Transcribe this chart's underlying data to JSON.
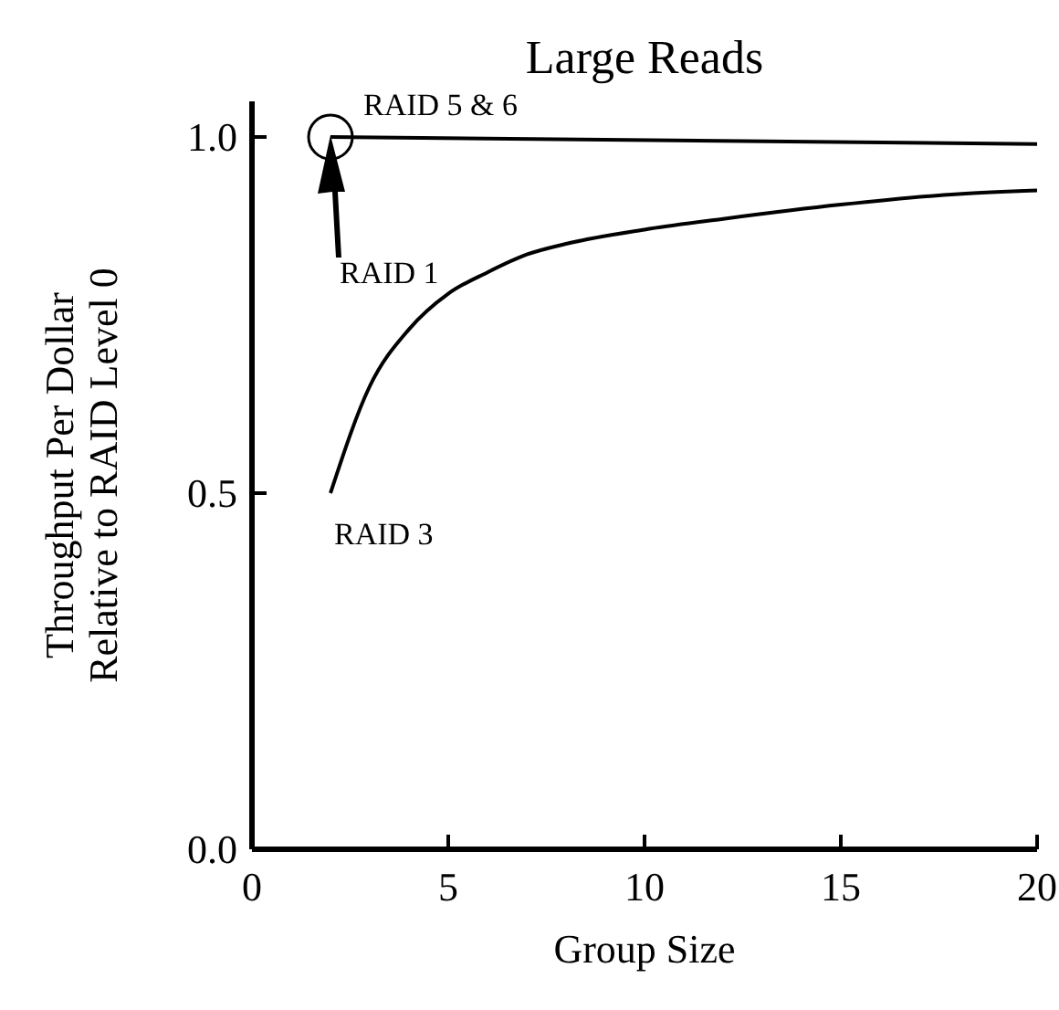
{
  "chart_data": {
    "type": "line",
    "title": "Large Reads",
    "xlabel": "Group Size",
    "ylabel": "Throughput Per Dollar\nRelative to RAID Level 0",
    "xlim": [
      0,
      20
    ],
    "ylim": [
      0,
      1.05
    ],
    "xticks": [
      0,
      5,
      10,
      15,
      20
    ],
    "yticks": [
      {
        "value": 0,
        "label": "0.0"
      },
      {
        "value": 0.5,
        "label": "0.5"
      },
      {
        "value": 1,
        "label": "1.0"
      }
    ],
    "grid": false,
    "legend": false,
    "line_style": "solid",
    "annotations": [
      "RAID 1"
    ],
    "series": [
      {
        "name": "RAID 5 & 6",
        "color": "#000000",
        "x": [
          2,
          20
        ],
        "values": [
          1.0,
          0.99
        ]
      },
      {
        "type": "scatter",
        "marker": "circle",
        "color": "#000000",
        "x": [
          2
        ],
        "values": [
          1.0
        ]
      },
      {
        "name": "RAID 3",
        "color": "#000000",
        "x": [
          2,
          3,
          4,
          5,
          6,
          7,
          8,
          10,
          12,
          15,
          18,
          20
        ],
        "values": [
          0.5,
          0.65,
          0.73,
          0.78,
          0.81,
          0.835,
          0.85,
          0.87,
          0.885,
          0.905,
          0.92,
          0.925
        ]
      }
    ]
  }
}
